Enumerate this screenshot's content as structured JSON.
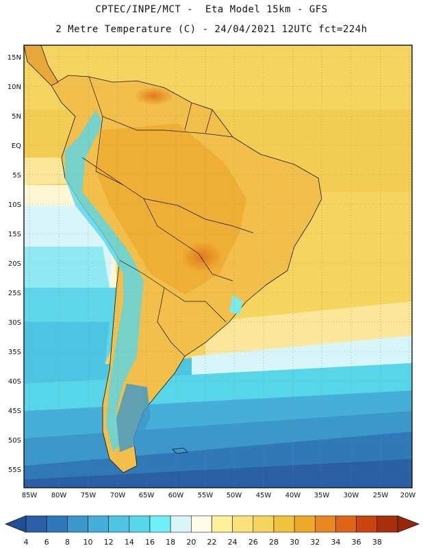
{
  "header": {
    "line1": "CPTEC/INPE/MCT -  Eta Model 15km - GFS",
    "line2": "2 Metre Temperature (C) - 24/04/2021 12UTC fct=224h"
  },
  "map": {
    "region": "South America",
    "variable": "2 Metre Temperature",
    "units": "C",
    "lat_labels": [
      "15N",
      "10N",
      "5N",
      "EQ",
      "5S",
      "10S",
      "15S",
      "20S",
      "25S",
      "30S",
      "35S",
      "40S",
      "45S",
      "50S",
      "55S"
    ],
    "lon_labels": [
      "85W",
      "80W",
      "75W",
      "70W",
      "65W",
      "60W",
      "55W",
      "50W",
      "45W",
      "40W",
      "35W",
      "30W",
      "25W",
      "20W"
    ]
  },
  "colorbar": {
    "values": [
      "4",
      "6",
      "8",
      "10",
      "12",
      "14",
      "16",
      "18",
      "20",
      "22",
      "24",
      "26",
      "28",
      "30",
      "32",
      "34",
      "36",
      "38"
    ],
    "colors": [
      "#2a5fa5",
      "#2f79b9",
      "#3c97cb",
      "#45aed9",
      "#4dc4e2",
      "#57d6ea",
      "#6ef0f8",
      "#d8f5fa",
      "#fffbe6",
      "#fdf29a",
      "#f9e27a",
      "#f4d45c",
      "#f0c23e",
      "#eea928",
      "#e88620",
      "#df6416",
      "#c94410",
      "#a92f0c"
    ],
    "low_arrow_color": "#1f4f95",
    "high_arrow_color": "#9a260a"
  }
}
